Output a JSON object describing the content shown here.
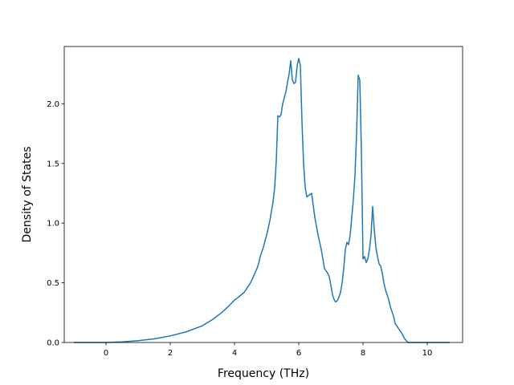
{
  "chart_data": {
    "type": "line",
    "title": "",
    "xlabel": "Frequency (THz)",
    "ylabel": "Density of States",
    "xlim": [
      -1.3,
      11.1
    ],
    "ylim": [
      0.0,
      2.48
    ],
    "xticks": [
      0,
      2,
      4,
      6,
      8,
      10
    ],
    "yticks": [
      0.0,
      0.5,
      1.0,
      1.5,
      2.0
    ],
    "xtick_labels": [
      "0",
      "2",
      "4",
      "6",
      "8",
      "10"
    ],
    "ytick_labels": [
      "0.0",
      "0.5",
      "1.0",
      "1.5",
      "2.0"
    ],
    "grid": false,
    "legend": "none",
    "line_color": "#1f77b4",
    "series": [
      {
        "x": [
          -1.0,
          -0.5,
          0.0,
          0.5,
          1.0,
          1.5,
          2.0,
          2.5,
          3.0,
          3.3,
          3.6,
          3.8,
          4.0,
          4.1,
          4.3,
          4.5,
          4.6,
          4.7,
          4.75,
          4.8,
          4.9,
          5.0,
          5.1,
          5.2,
          5.25,
          5.3,
          5.35,
          5.4,
          5.45,
          5.5,
          5.55,
          5.6,
          5.65,
          5.7,
          5.75,
          5.8,
          5.85,
          5.9,
          5.95,
          6.0,
          6.05,
          6.1,
          6.15,
          6.2,
          6.25,
          6.3,
          6.35,
          6.4,
          6.5,
          6.6,
          6.7,
          6.8,
          6.9,
          6.95,
          7.0,
          7.05,
          7.1,
          7.15,
          7.2,
          7.25,
          7.3,
          7.35,
          7.4,
          7.45,
          7.5,
          7.55,
          7.6,
          7.65,
          7.7,
          7.75,
          7.8,
          7.85,
          7.9,
          7.95,
          8.0,
          8.05,
          8.1,
          8.15,
          8.2,
          8.25,
          8.3,
          8.35,
          8.4,
          8.45,
          8.5,
          8.55,
          8.6,
          8.65,
          8.7,
          8.75,
          8.8,
          8.85,
          8.9,
          8.95,
          9.0,
          9.1,
          9.2,
          9.3,
          9.4,
          9.5,
          9.6,
          9.7,
          9.75,
          9.8,
          9.9,
          10.0,
          10.5,
          10.7
        ],
        "values": [
          0.0,
          0.0,
          0.0,
          0.005,
          0.015,
          0.03,
          0.055,
          0.09,
          0.14,
          0.19,
          0.25,
          0.3,
          0.355,
          0.375,
          0.42,
          0.5,
          0.56,
          0.62,
          0.66,
          0.72,
          0.8,
          0.9,
          1.02,
          1.18,
          1.3,
          1.52,
          1.9,
          1.89,
          1.91,
          2.0,
          2.05,
          2.1,
          2.18,
          2.25,
          2.36,
          2.2,
          2.17,
          2.18,
          2.32,
          2.38,
          2.32,
          1.85,
          1.5,
          1.3,
          1.22,
          1.23,
          1.24,
          1.25,
          1.05,
          0.9,
          0.78,
          0.62,
          0.58,
          0.55,
          0.48,
          0.4,
          0.36,
          0.34,
          0.35,
          0.38,
          0.42,
          0.5,
          0.62,
          0.78,
          0.84,
          0.82,
          0.9,
          1.05,
          1.2,
          1.4,
          1.75,
          2.24,
          2.2,
          1.6,
          0.7,
          0.72,
          0.67,
          0.7,
          0.78,
          0.9,
          1.14,
          0.95,
          0.8,
          0.72,
          0.66,
          0.64,
          0.58,
          0.5,
          0.44,
          0.4,
          0.36,
          0.3,
          0.26,
          0.22,
          0.16,
          0.12,
          0.08,
          0.03,
          0.0,
          0.0,
          0.0,
          0.0,
          0.0,
          0.0,
          0.0,
          0.0,
          0.0,
          0.0
        ]
      }
    ]
  }
}
